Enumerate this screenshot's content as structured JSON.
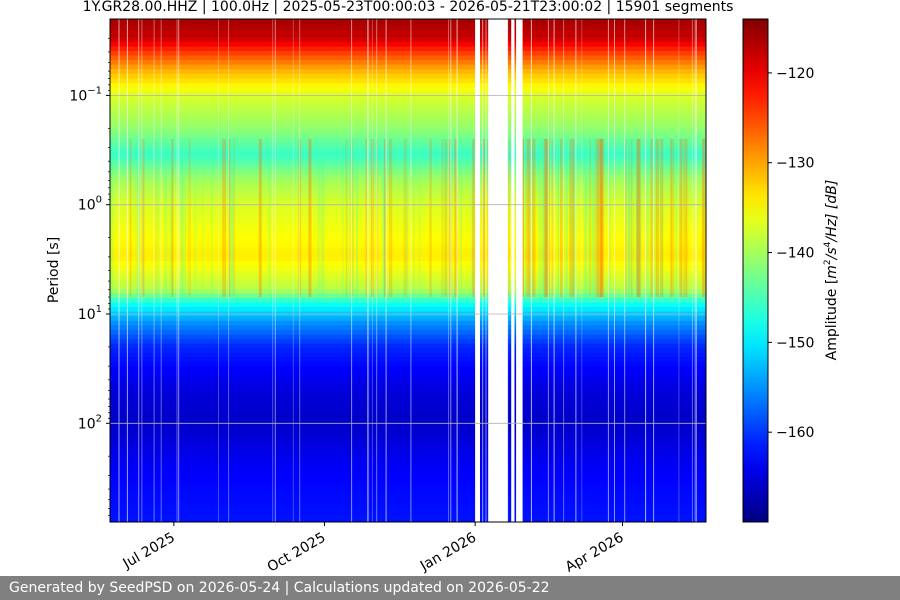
{
  "footer": {
    "text": "Generated by SeedPSD on 2026-05-24 | Calculations updated on 2026-05-22"
  },
  "chart_data": {
    "type": "heatmap",
    "title": "1Y.GR28.00.HHZ | 100.0Hz | 2025-05-23T00:00:03 - 2026-05-21T23:00:02 | 15901 segments",
    "xlabel": "",
    "ylabel": "Period [s]",
    "x_range": [
      "2025-05-23",
      "2026-05-22"
    ],
    "x_ticks": [
      {
        "date": "2025-07-01",
        "label": "Jul 2025"
      },
      {
        "date": "2025-10-01",
        "label": "Oct 2025"
      },
      {
        "date": "2026-01-01",
        "label": "Jan 2026"
      },
      {
        "date": "2026-04-01",
        "label": "Apr 2026"
      }
    ],
    "y_scale": "log",
    "y_inverted": true,
    "y_range": [
      0.02,
      800
    ],
    "y_ticks": [
      {
        "value": 0.1,
        "base": "10",
        "exp": "−1"
      },
      {
        "value": 1,
        "base": "10",
        "exp": "0"
      },
      {
        "value": 10,
        "base": "10",
        "exp": "1"
      },
      {
        "value": 100,
        "base": "10",
        "exp": "2"
      }
    ],
    "grid": true,
    "colorbar": {
      "label_prefix": "Amplitude [",
      "label_m": "m",
      "label_m_exp": "2",
      "label_s": "/s",
      "label_s_exp": "4",
      "label_suffix": "/Hz] [dB]",
      "colormap": "jet",
      "range": [
        -170,
        -114
      ],
      "ticks": [
        {
          "value": -120,
          "label": "−120"
        },
        {
          "value": -130,
          "label": "−130"
        },
        {
          "value": -140,
          "label": "−140"
        },
        {
          "value": -150,
          "label": "−150"
        },
        {
          "value": -160,
          "label": "−160"
        }
      ]
    },
    "median_profile": [
      {
        "period": 0.02,
        "db": -116
      },
      {
        "period": 0.03,
        "db": -118
      },
      {
        "period": 0.04,
        "db": -124
      },
      {
        "period": 0.06,
        "db": -131
      },
      {
        "period": 0.1,
        "db": -137
      },
      {
        "period": 0.2,
        "db": -141
      },
      {
        "period": 0.35,
        "db": -146
      },
      {
        "period": 0.6,
        "db": -140
      },
      {
        "period": 1,
        "db": -137
      },
      {
        "period": 3,
        "db": -134
      },
      {
        "period": 6,
        "db": -139
      },
      {
        "period": 8,
        "db": -148
      },
      {
        "period": 12,
        "db": -155
      },
      {
        "period": 20,
        "db": -161
      },
      {
        "period": 50,
        "db": -165
      },
      {
        "period": 100,
        "db": -166
      },
      {
        "period": 300,
        "db": -163
      },
      {
        "period": 800,
        "db": -162
      }
    ],
    "data_gaps": [
      {
        "start": "2026-01-01",
        "end": "2026-01-04"
      },
      {
        "start": "2026-01-09",
        "end": "2026-01-21"
      },
      {
        "start": "2026-01-23",
        "end": "2026-01-25"
      },
      {
        "start": "2026-01-26",
        "end": "2026-01-30"
      }
    ]
  }
}
